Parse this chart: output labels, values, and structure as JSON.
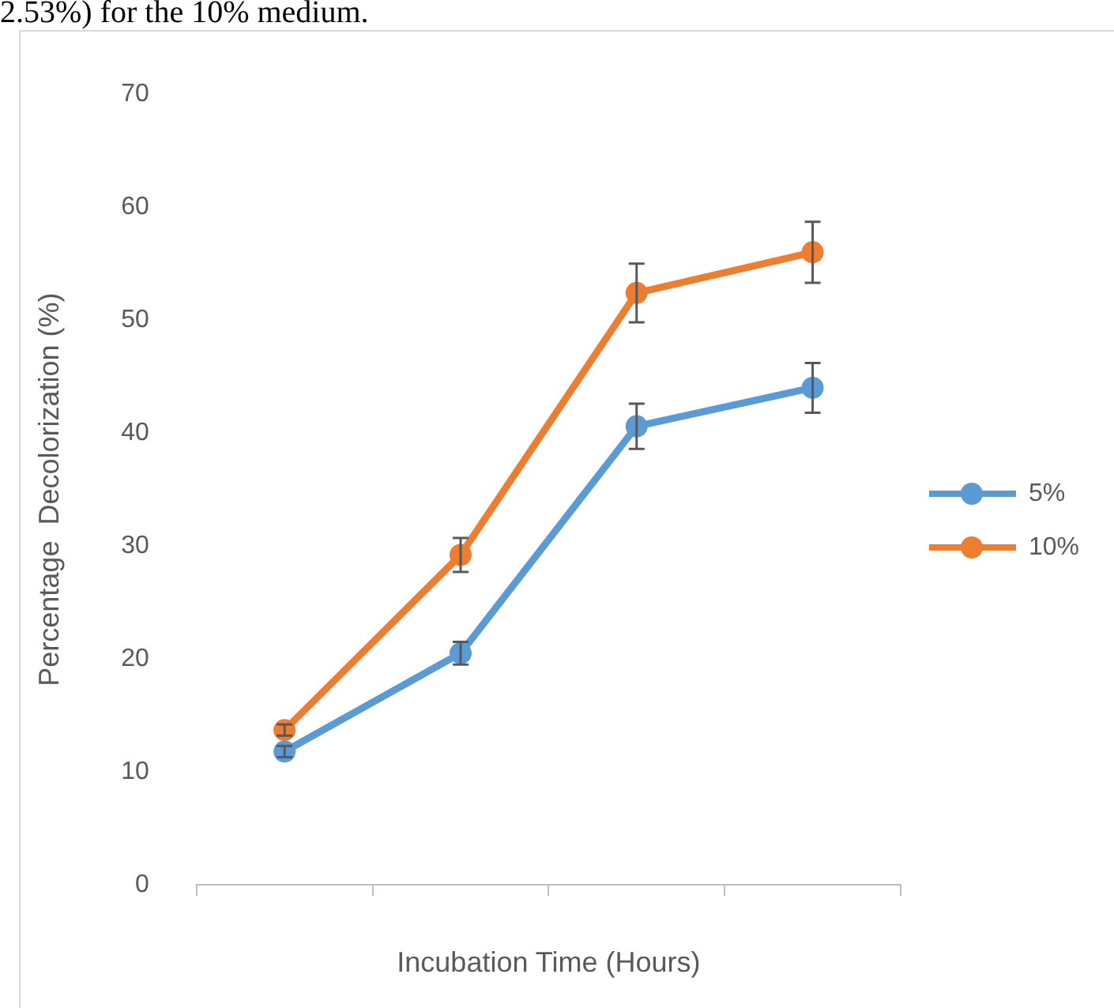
{
  "chart_data": {
    "type": "line",
    "ylabel": "Percentage  Decolorization (%)",
    "xlabel": "Incubation Time (Hours)",
    "annotations": [
      "2.53%) for the 10% medium."
    ],
    "categories": [
      null,
      null,
      null,
      null
    ],
    "series": [
      {
        "name": "5%",
        "color": "#5b9bd5",
        "values": [
          11.8,
          20.5,
          40.6,
          44.0
        ],
        "errors": [
          0.5,
          1.0,
          2.0,
          2.2
        ]
      },
      {
        "name": "10%",
        "color": "#ed7d31",
        "values": [
          13.7,
          29.2,
          52.4,
          56.0
        ],
        "errors": [
          0.5,
          1.5,
          2.6,
          2.7
        ]
      }
    ],
    "ylim": [
      0,
      70
    ],
    "yticks": [
      0,
      10,
      20,
      30,
      40,
      50,
      60,
      70
    ],
    "grid": false,
    "legend": "right",
    "marker": "circle",
    "line_style": "solid"
  }
}
